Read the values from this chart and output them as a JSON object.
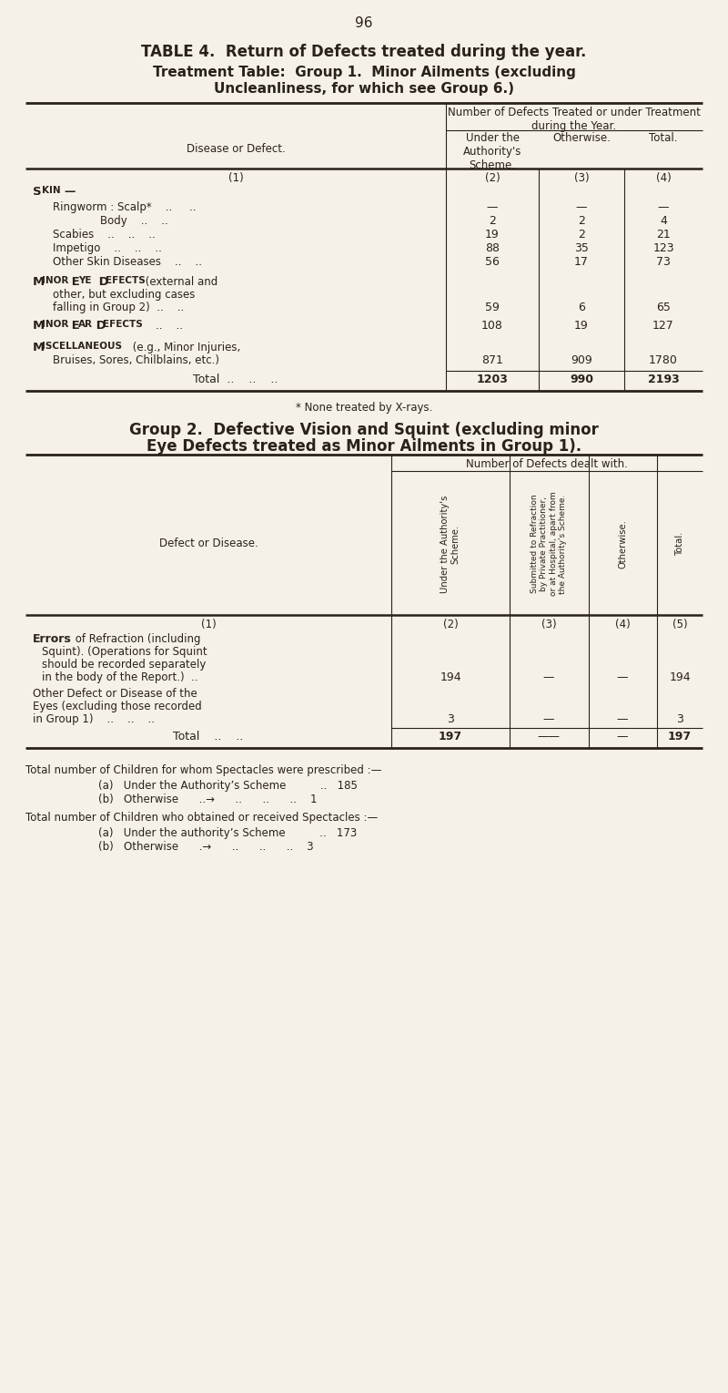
{
  "bg_color": "#f5f0e8",
  "text_color": "#2a2218",
  "page_number": "96",
  "title1": "TABLE 4.  Return of Defects treated during the year.",
  "title2": "Treatment Table:  Group 1.  Minor Ailments (excluding",
  "title3": "Uncleanliness, for which see Group 6.)",
  "footnote1": "* None treated by X-rays.",
  "group2_title1": "Group 2.  Defective Vision and Squint (excluding minor",
  "group2_title2": "Eye Defects treated as Minor Ailments in Group 1).",
  "footer1": "Total number of Children for whom Spectacles were prescribed :—",
  "footer2a": "(a)   Under the Authority’s Scheme          ..   185",
  "footer2b": "(b)   Otherwise      ..→      ..      ..      ..    1",
  "footer3": "Total number of Children who obtained or received Spectacles :—",
  "footer4a": "(a)   Under the authority’s Scheme          ..   173",
  "footer4b": "(b)   Otherwise      .→      ..      ..      ..    3"
}
